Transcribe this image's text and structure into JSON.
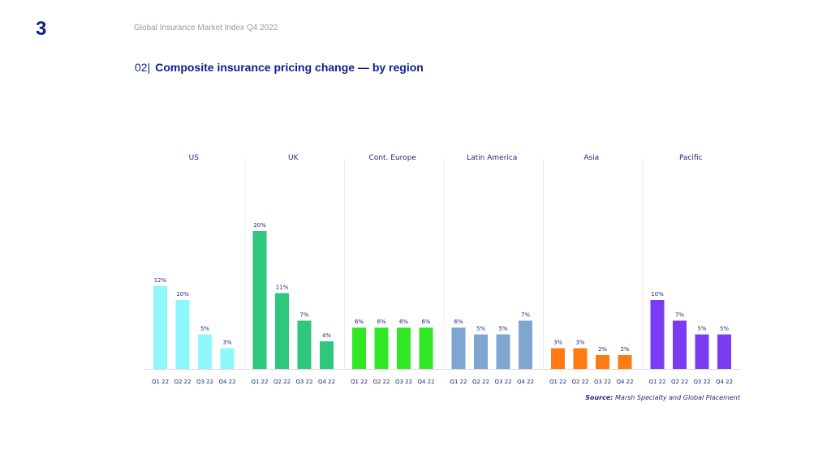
{
  "header": {
    "page_number": "3",
    "subtitle": "Global Insurance Market Index Q4 2022"
  },
  "section": {
    "number": "02",
    "title": "Composite insurance pricing change — by region"
  },
  "source": {
    "label": "Source:",
    "text": "Marsh Specialty and Global Placement"
  },
  "chart_data": {
    "type": "bar",
    "categories": [
      "Q1 22",
      "Q2 22",
      "Q3 22",
      "Q4 22"
    ],
    "ylim": [
      0,
      20
    ],
    "grid": false,
    "regions": [
      {
        "name": "US",
        "color": "#8ef7fb",
        "values": [
          12,
          10,
          5,
          3
        ],
        "labels": [
          "12%",
          "10%",
          "5%",
          "3%"
        ]
      },
      {
        "name": "UK",
        "color": "#2ec77d",
        "values": [
          20,
          11,
          7,
          4
        ],
        "labels": [
          "20%",
          "11%",
          "7%",
          "4%"
        ]
      },
      {
        "name": "Cont. Europe",
        "color": "#30e826",
        "values": [
          6,
          6,
          6,
          6
        ],
        "labels": [
          "6%",
          "6%",
          "6%",
          "6%"
        ]
      },
      {
        "name": "Latin America",
        "color": "#7fa6d1",
        "values": [
          6,
          5,
          5,
          7
        ],
        "labels": [
          "6%",
          "5%",
          "5%",
          "7%"
        ]
      },
      {
        "name": "Asia",
        "color": "#ff7a12",
        "values": [
          3,
          3,
          2,
          2
        ],
        "labels": [
          "3%",
          "3%",
          "2%",
          "2%"
        ]
      },
      {
        "name": "Pacific",
        "color": "#7a3cf2",
        "values": [
          10,
          7,
          5,
          5
        ],
        "labels": [
          "10%",
          "7%",
          "5%",
          "5%"
        ]
      }
    ]
  }
}
